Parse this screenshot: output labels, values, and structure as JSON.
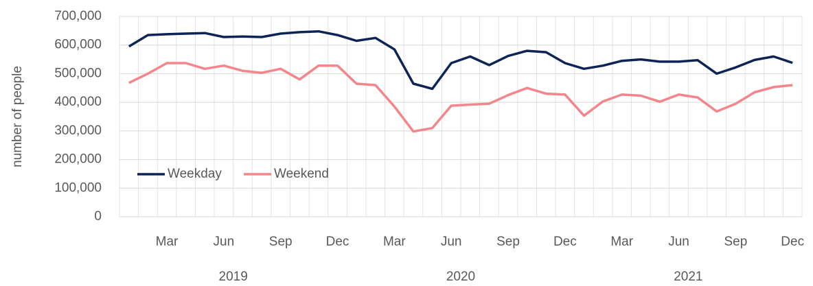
{
  "chart_data": {
    "type": "line",
    "y_label": "number of people",
    "categories": [
      null,
      null,
      "Mar",
      null,
      null,
      "Jun",
      null,
      null,
      "Sep",
      null,
      null,
      "Dec",
      null,
      null,
      "Mar",
      null,
      null,
      "Jun",
      null,
      null,
      "Sep",
      null,
      null,
      "Dec",
      null,
      null,
      "Mar",
      null,
      null,
      "Jun",
      null,
      null,
      "Sep",
      null,
      null,
      "Dec"
    ],
    "category_groups": [
      "2019",
      "2020",
      "2021"
    ],
    "series": [
      {
        "name": "Weekday",
        "color": "#0d2456",
        "values": [
          595000,
          635000,
          638000,
          640000,
          642000,
          628000,
          630000,
          628000,
          640000,
          645000,
          648000,
          635000,
          615000,
          625000,
          585000,
          465000,
          447000,
          537000,
          560000,
          530000,
          562000,
          580000,
          575000,
          537000,
          517000,
          528000,
          545000,
          550000,
          542000,
          542000,
          547000,
          500000,
          522000,
          548000,
          560000,
          538000
        ]
      },
      {
        "name": "Weekend",
        "color": "#f4858a",
        "values": [
          468000,
          500000,
          537000,
          537000,
          517000,
          528000,
          510000,
          503000,
          517000,
          480000,
          528000,
          528000,
          465000,
          460000,
          385000,
          298000,
          310000,
          388000,
          392000,
          395000,
          425000,
          450000,
          430000,
          427000,
          353000,
          403000,
          427000,
          423000,
          402000,
          427000,
          417000,
          368000,
          395000,
          435000,
          453000,
          460000
        ]
      }
    ],
    "ylim": [
      0,
      700000
    ],
    "yticks": [
      0,
      {
        "value": 100000,
        "label": "100,000"
      },
      {
        "value": 200000,
        "label": "200,000"
      },
      {
        "value": 300000,
        "label": "300,000"
      },
      {
        "value": 400000,
        "label": "400,000"
      },
      {
        "value": 500000,
        "label": "500,000"
      },
      {
        "value": 600000,
        "label": "600,000"
      },
      {
        "value": 700000,
        "label": "700,000"
      }
    ],
    "grid": true,
    "legend": "lower-left"
  }
}
